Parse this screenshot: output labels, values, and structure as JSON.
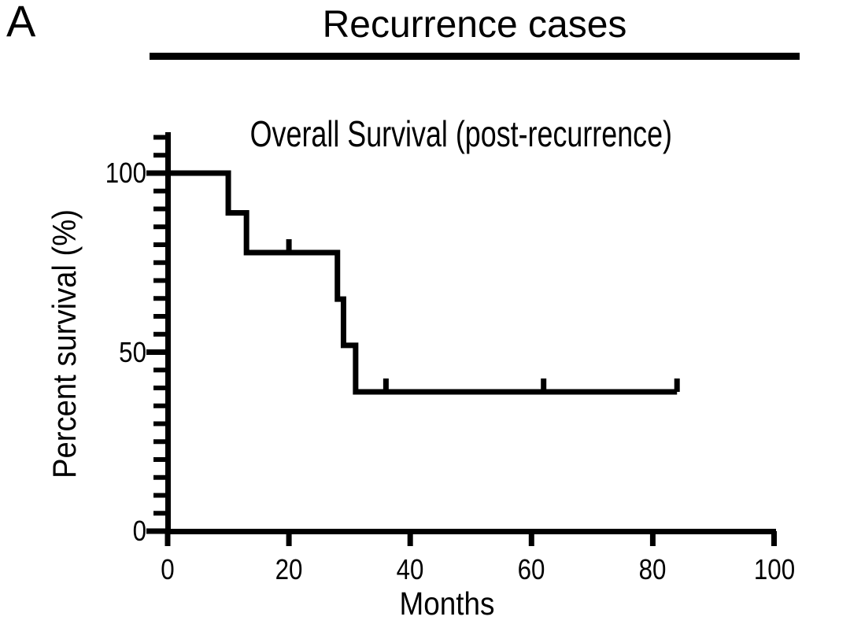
{
  "panel_label": "A",
  "header": {
    "title": "Recurrence cases"
  },
  "colors": {
    "curve": "#000000",
    "text": "#000000",
    "background": "#ffffff"
  },
  "chart_data": {
    "type": "line",
    "subtype": "kaplan_meier_step",
    "title": "Overall Survival (post-recurrence)",
    "panel_title": "Recurrence cases",
    "xlabel": "Months",
    "ylabel": "Percent survival (%)",
    "xlim": [
      0,
      100
    ],
    "ylim": [
      0,
      100
    ],
    "x_ticks": [
      0,
      20,
      40,
      60,
      80,
      100
    ],
    "y_ticks": [
      0,
      50,
      100
    ],
    "y_minor_tick_interval": 5,
    "y_axis_minor_overhang_ticks": [
      105,
      110
    ],
    "grid": false,
    "legend": "none",
    "series": [
      {
        "name": "Overall survival (post-recurrence)",
        "color": "#000000",
        "steps": [
          {
            "time": 0,
            "survival": 100
          },
          {
            "time": 10,
            "survival": 88.9
          },
          {
            "time": 13,
            "survival": 77.8
          },
          {
            "time": 28,
            "survival": 64.8
          },
          {
            "time": 29,
            "survival": 51.9
          },
          {
            "time": 31,
            "survival": 38.9
          }
        ],
        "censor_marks": [
          {
            "time": 20,
            "survival": 77.8
          },
          {
            "time": 36,
            "survival": 38.9
          },
          {
            "time": 62,
            "survival": 38.9
          },
          {
            "time": 84,
            "survival": 38.9
          }
        ],
        "end_time": 84
      }
    ]
  }
}
